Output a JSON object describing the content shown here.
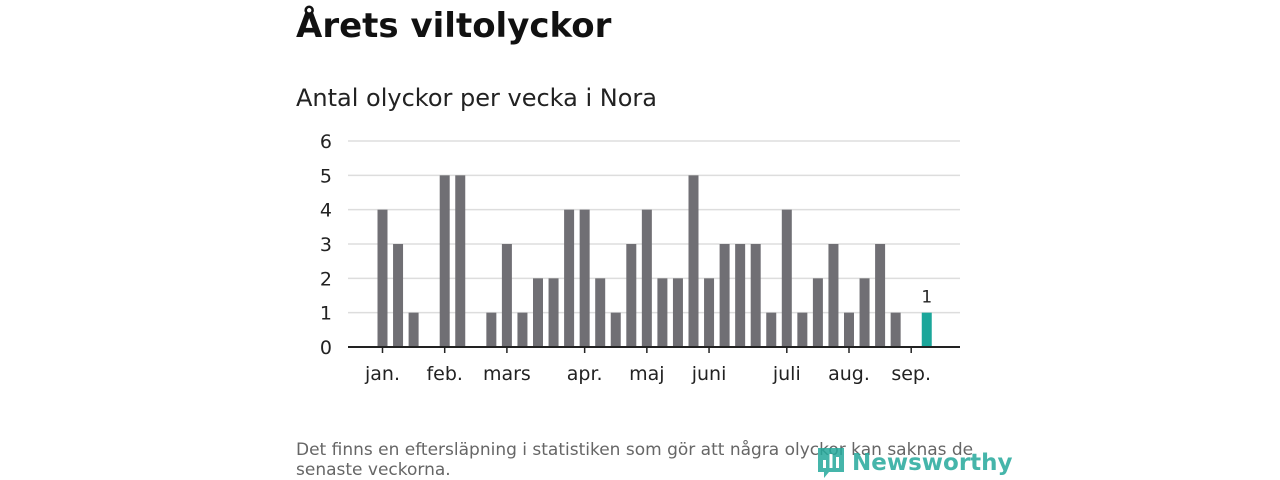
{
  "header": {
    "title": "Årets viltolyckor",
    "subtitle": "Antal olyckor per vecka i Nora"
  },
  "footer": {
    "note": "Det finns en eftersläpning i statistiken som gör att några olyckor kan saknas de senaste veckorna.",
    "logo_text": "Newsworthy",
    "logo_icon": "chart-bubble-icon"
  },
  "colors": {
    "bar": "#706f74",
    "highlight": "#1ba69a",
    "grid": "#dddddd",
    "axis": "#222222",
    "brand": "#25a99c"
  },
  "chart_data": {
    "type": "bar",
    "title": "Antal olyckor per vecka i Nora",
    "xlabel": "",
    "ylabel": "",
    "ylim": [
      0,
      6
    ],
    "yticks": [
      0,
      1,
      2,
      3,
      4,
      5,
      6
    ],
    "grid": true,
    "legend": "none",
    "weeks": [
      1,
      2,
      3,
      4,
      5,
      6,
      7,
      8,
      9,
      10,
      11,
      12,
      13,
      14,
      15,
      16,
      17,
      18,
      19,
      20,
      21,
      22,
      23,
      24,
      25,
      26,
      27,
      28,
      29,
      30,
      31,
      32,
      33,
      34,
      35,
      36,
      37,
      38,
      39,
      40
    ],
    "values": [
      0,
      0,
      4,
      3,
      1,
      0,
      5,
      5,
      0,
      1,
      3,
      1,
      2,
      2,
      4,
      4,
      2,
      1,
      3,
      4,
      2,
      2,
      5,
      2,
      3,
      3,
      3,
      1,
      4,
      1,
      2,
      3,
      1,
      2,
      3,
      1,
      0,
      1,
      0,
      0
    ],
    "highlight_week": 38,
    "highlight_label": "1",
    "month_labels": [
      {
        "label": "jan.",
        "week": 3
      },
      {
        "label": "feb.",
        "week": 7
      },
      {
        "label": "mars",
        "week": 11
      },
      {
        "label": "apr.",
        "week": 16
      },
      {
        "label": "maj",
        "week": 20
      },
      {
        "label": "juni",
        "week": 24
      },
      {
        "label": "juli",
        "week": 29
      },
      {
        "label": "aug.",
        "week": 33
      },
      {
        "label": "sep.",
        "week": 37
      }
    ]
  }
}
